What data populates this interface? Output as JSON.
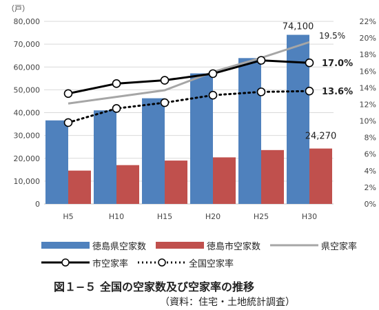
{
  "chart_data": {
    "type": "bar",
    "categories": [
      "H5",
      "H10",
      "H15",
      "H20",
      "H25",
      "H30"
    ],
    "left_axis": {
      "unit": "（戸）",
      "ticks": [
        "0",
        "10,000",
        "20,000",
        "30,000",
        "40,000",
        "50,000",
        "60,000",
        "70,000",
        "80,000"
      ],
      "ylim": [
        0,
        80000
      ]
    },
    "right_axis": {
      "ticks": [
        "0%",
        "2%",
        "4%",
        "6%",
        "8%",
        "10%",
        "12%",
        "14%",
        "16%",
        "18%",
        "20%",
        "22%"
      ],
      "ylim": [
        0,
        22
      ]
    },
    "bar_series": [
      {
        "name": "徳島県空家数",
        "color": "#4F81BD",
        "values": [
          36600,
          41000,
          46300,
          57200,
          63900,
          74100
        ]
      },
      {
        "name": "徳島市空家数",
        "color": "#C0504D",
        "values": [
          14600,
          17000,
          19000,
          20400,
          23600,
          24270
        ]
      }
    ],
    "line_series": [
      {
        "name": "県空家率",
        "color": "#A6A6A6",
        "style": "solid",
        "markers": false,
        "values": [
          12.1,
          12.9,
          13.7,
          15.9,
          17.6,
          19.5
        ]
      },
      {
        "name": "市空家率",
        "color": "#000000",
        "style": "solid",
        "markers": true,
        "values": [
          13.3,
          14.5,
          14.9,
          15.7,
          17.3,
          17.0
        ]
      },
      {
        "name": "全国空家率",
        "color": "#000000",
        "style": "dotted",
        "markers": true,
        "values": [
          9.8,
          11.5,
          12.2,
          13.1,
          13.5,
          13.6
        ]
      }
    ],
    "annotations": [
      "74,100",
      "24,270",
      "19.5%",
      "17.0%",
      "13.6%"
    ]
  },
  "legend": {
    "row1": [
      "徳島県空家数",
      "徳島市空家数",
      "県空家率"
    ],
    "row2": [
      "市空家率",
      "全国空家率"
    ]
  },
  "caption": "図１−５ 全国の空家数及び空家率の推移",
  "source": "（資料：住宅・土地統計調査）"
}
